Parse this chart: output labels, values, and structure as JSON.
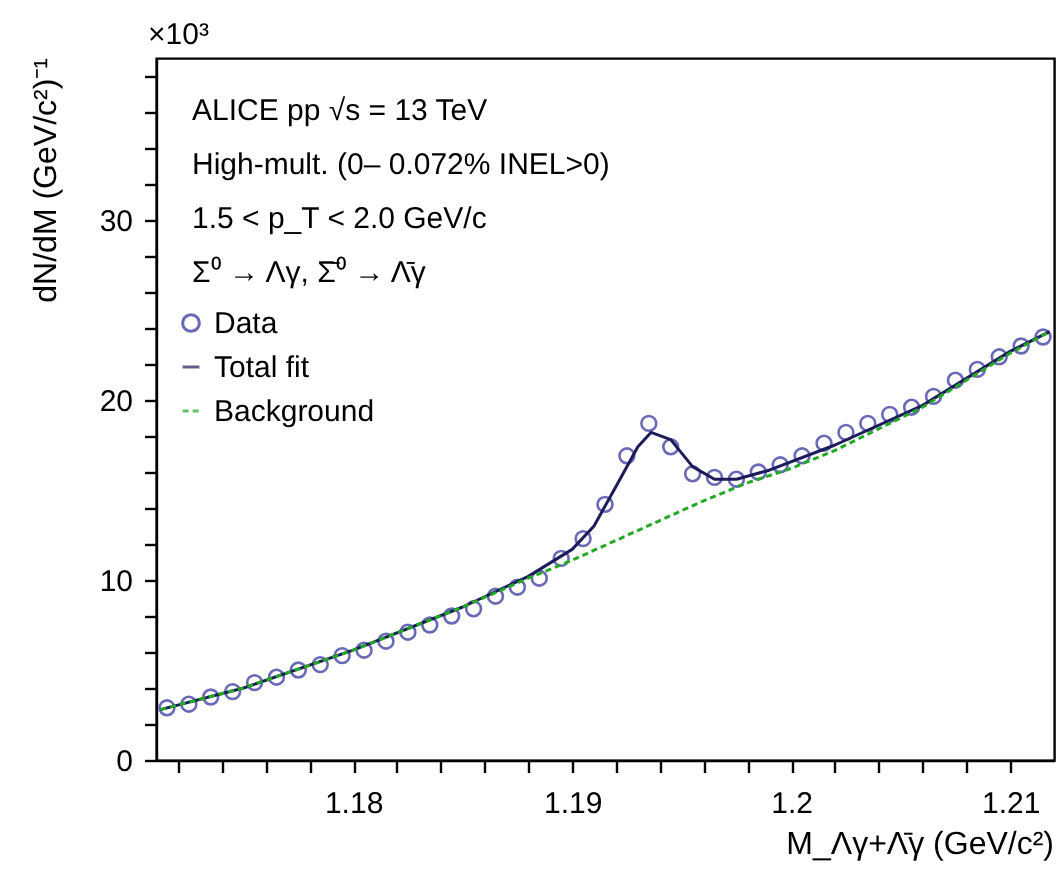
{
  "chart_data": {
    "type": "scatter",
    "xlabel": "M_Λγ+Λ̄γ (GeV/c²)",
    "ylabel": "dN/dM (GeV/c²)⁻¹",
    "annotations": [
      "×10³",
      "ALICE pp √s = 13 TeV",
      "High-mult. (0– 0.072% INEL>0)",
      "1.5 < p_T < 2.0 GeV/c",
      "Σ⁰ → Λγ, Σ̄⁰ → Λ̄γ"
    ],
    "series": [
      {
        "name": "Data",
        "type": "scatter",
        "marker": "circle",
        "color": "#2b2b9a",
        "x": [
          1.1715,
          1.1725,
          1.1735,
          1.1745,
          1.1755,
          1.1765,
          1.1775,
          1.1785,
          1.1795,
          1.1805,
          1.1815,
          1.1825,
          1.1835,
          1.1845,
          1.1855,
          1.1865,
          1.1875,
          1.1885,
          1.1895,
          1.1905,
          1.1915,
          1.1925,
          1.1935,
          1.1945,
          1.1955,
          1.1965,
          1.1975,
          1.1985,
          1.1995,
          1.2005,
          1.2015,
          1.2025,
          1.2035,
          1.2045,
          1.2055,
          1.2065,
          1.2075,
          1.2085,
          1.2095,
          1.2105,
          1.2115
        ],
        "values": [
          2.9,
          3.1,
          3.5,
          3.8,
          4.3,
          4.6,
          5.0,
          5.3,
          5.8,
          6.1,
          6.6,
          7.1,
          7.5,
          8.0,
          8.4,
          9.1,
          9.6,
          10.1,
          11.2,
          12.3,
          14.2,
          16.9,
          18.7,
          17.4,
          15.9,
          15.7,
          15.6,
          16.0,
          16.4,
          16.9,
          17.6,
          18.2,
          18.7,
          19.2,
          19.6,
          20.2,
          21.1,
          21.7,
          22.4,
          23.0,
          23.5
        ]
      },
      {
        "name": "Total fit",
        "type": "line",
        "line_style": "solid",
        "marker": "none",
        "color": "#1c1c5c",
        "x": [
          1.1712,
          1.175,
          1.18,
          1.185,
          1.188,
          1.19,
          1.191,
          1.192,
          1.193,
          1.1936,
          1.1945,
          1.1955,
          1.1965,
          1.1975,
          1.199,
          1.202,
          1.206,
          1.21,
          1.2118
        ],
        "values": [
          2.8,
          4.0,
          6.1,
          8.5,
          10.2,
          11.7,
          13.0,
          15.2,
          17.4,
          18.2,
          17.8,
          16.3,
          15.6,
          15.6,
          16.1,
          17.5,
          19.7,
          22.7,
          23.8
        ]
      },
      {
        "name": "Background",
        "type": "line",
        "line_style": "dashed",
        "marker": "none",
        "color": "#22aa22",
        "x": [
          1.1712,
          1.175,
          1.18,
          1.185,
          1.188,
          1.19,
          1.192,
          1.194,
          1.196,
          1.198,
          1.2,
          1.202,
          1.206,
          1.21,
          1.2118
        ],
        "values": [
          2.8,
          4.0,
          6.1,
          8.5,
          10.1,
          11.1,
          12.2,
          13.3,
          14.4,
          15.4,
          16.2,
          17.2,
          19.6,
          22.6,
          23.8
        ]
      }
    ],
    "xlim": [
      1.171,
      1.212
    ],
    "xticks": [
      {
        "value": 1.172,
        "label": null
      },
      {
        "value": 1.174,
        "label": null
      },
      {
        "value": 1.176,
        "label": null
      },
      {
        "value": 1.178,
        "label": null
      },
      1.18,
      {
        "value": 1.182,
        "label": null
      },
      {
        "value": 1.184,
        "label": null
      },
      {
        "value": 1.186,
        "label": null
      },
      {
        "value": 1.188,
        "label": null
      },
      1.19,
      {
        "value": 1.192,
        "label": null
      },
      {
        "value": 1.194,
        "label": null
      },
      {
        "value": 1.196,
        "label": null
      },
      {
        "value": 1.198,
        "label": null
      },
      1.2,
      {
        "value": 1.202,
        "label": null
      },
      {
        "value": 1.204,
        "label": null
      },
      {
        "value": 1.206,
        "label": null
      },
      {
        "value": 1.208,
        "label": null
      },
      1.21
    ],
    "ylim": [
      0,
      39
    ],
    "yticks": [
      0,
      {
        "value": 2,
        "label": null
      },
      {
        "value": 4,
        "label": null
      },
      {
        "value": 6,
        "label": null
      },
      {
        "value": 8,
        "label": null
      },
      10,
      {
        "value": 12,
        "label": null
      },
      {
        "value": 14,
        "label": null
      },
      {
        "value": 16,
        "label": null
      },
      {
        "value": 18,
        "label": null
      },
      20,
      {
        "value": 22,
        "label": null
      },
      {
        "value": 24,
        "label": null
      },
      {
        "value": 26,
        "label": null
      },
      {
        "value": 28,
        "label": null
      },
      30,
      {
        "value": 32,
        "label": null
      },
      {
        "value": 34,
        "label": null
      },
      {
        "value": 36,
        "label": null
      },
      {
        "value": 38,
        "label": null
      }
    ],
    "grid": false,
    "legend": "top left"
  }
}
